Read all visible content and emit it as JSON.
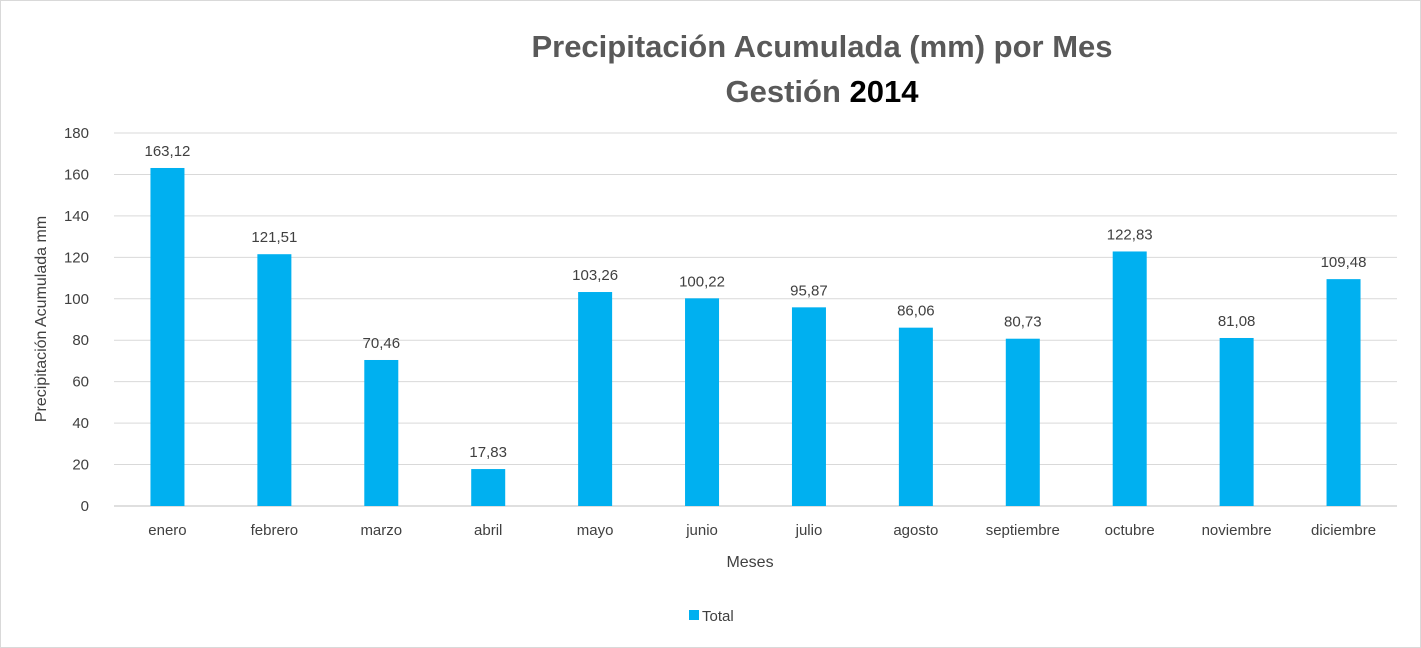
{
  "chart_data": {
    "type": "bar",
    "title_line1": "Precipitación Acumulada (mm) por Mes",
    "title_line2_prefix": "Gestión",
    "title_line2_year": "2014",
    "xlabel": "Meses",
    "ylabel": "Precipitación Acumulada mm",
    "ylim": [
      0,
      180
    ],
    "yticks": [
      0,
      20,
      40,
      60,
      80,
      100,
      120,
      140,
      160,
      180
    ],
    "grid": true,
    "legend_position": "bottom",
    "categories": [
      "enero",
      "febrero",
      "marzo",
      "abril",
      "mayo",
      "junio",
      "julio",
      "agosto",
      "septiembre",
      "octubre",
      "noviembre",
      "diciembre"
    ],
    "series": [
      {
        "name": "Total",
        "color": "#00b0f0",
        "values": [
          163.12,
          121.51,
          70.46,
          17.83,
          103.26,
          100.22,
          95.87,
          86.06,
          80.73,
          122.83,
          81.08,
          109.48
        ],
        "labels": [
          "163,12",
          "121,51",
          "70,46",
          "17,83",
          "103,26",
          "100,22",
          "95,87",
          "86,06",
          "80,73",
          "122,83",
          "81,08",
          "109,48"
        ]
      }
    ]
  }
}
